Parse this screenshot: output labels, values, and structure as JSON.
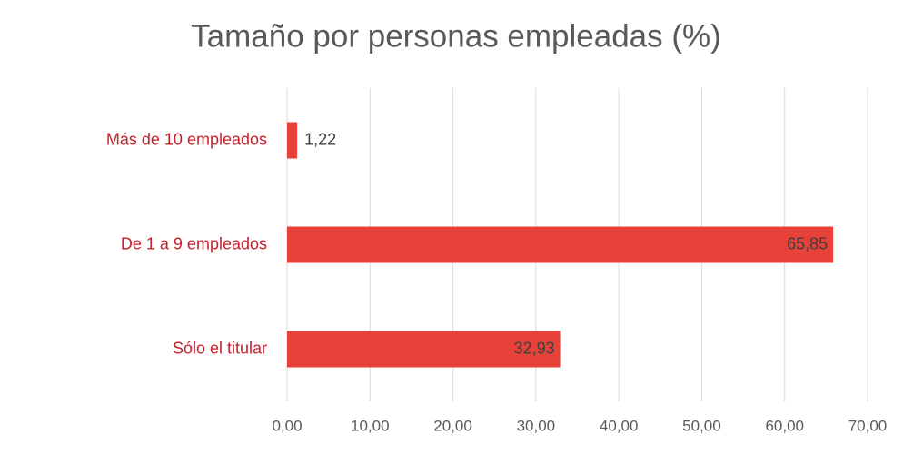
{
  "chart_data": {
    "type": "bar",
    "orientation": "horizontal",
    "title": "Tamaño  por personas empleadas (%)",
    "categories": [
      "Más de 10 empleados",
      "De 1 a 9 empleados",
      "Sólo el titular"
    ],
    "values": [
      1.22,
      65.85,
      32.93
    ],
    "value_labels": [
      "1,22",
      "65,85",
      "32,93"
    ],
    "color": "#e8413a",
    "xlim": [
      0,
      70
    ],
    "xticks": [
      {
        "value": 0,
        "label": "0,00"
      },
      {
        "value": 10,
        "label": "10,00"
      },
      {
        "value": 20,
        "label": "20,00"
      },
      {
        "value": 30,
        "label": "30,00"
      },
      {
        "value": 40,
        "label": "40,00"
      },
      {
        "value": 50,
        "label": "50,00"
      },
      {
        "value": 60,
        "label": "60,00"
      },
      {
        "value": 70,
        "label": "70,00"
      }
    ],
    "grid": true
  }
}
